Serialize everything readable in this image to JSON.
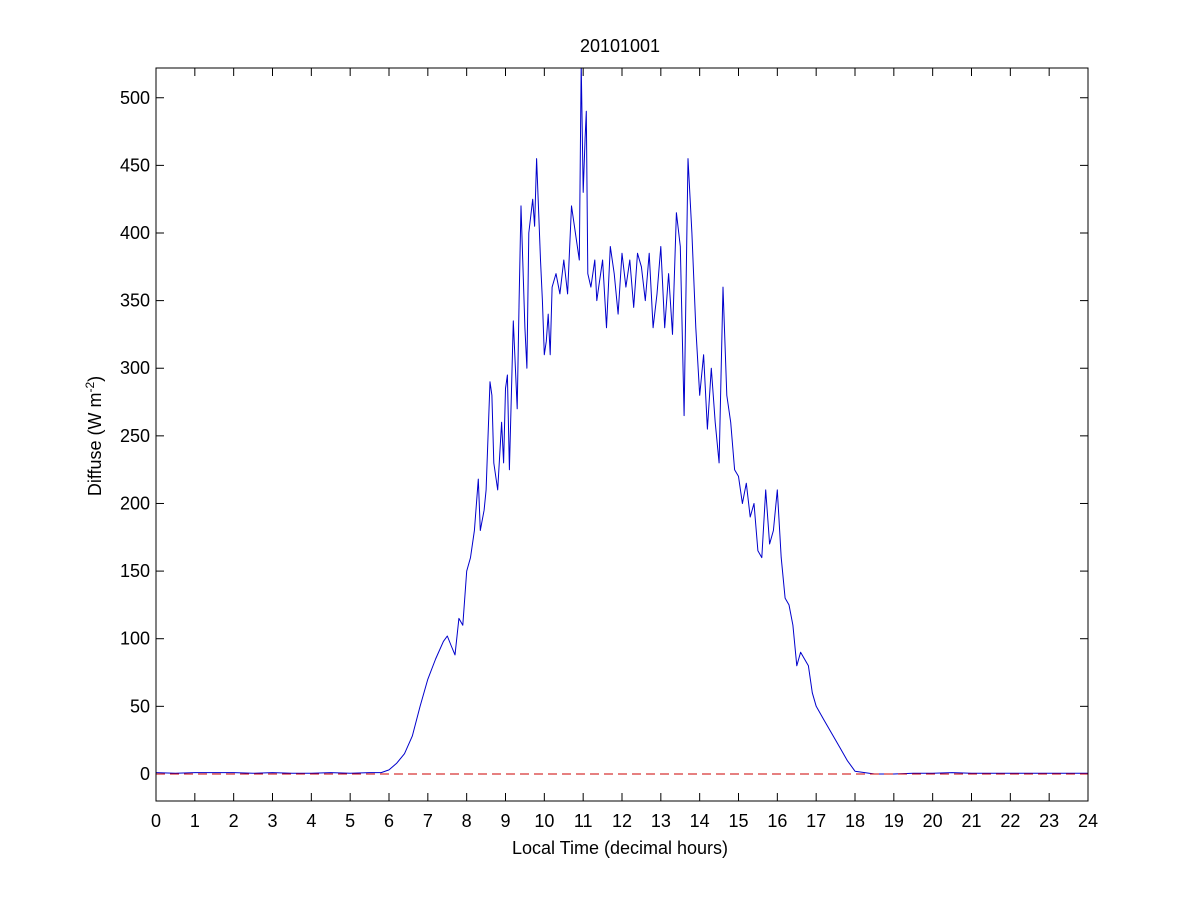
{
  "chart_data": {
    "type": "line",
    "title": "20101001",
    "xlabel": "Local Time (decimal hours)",
    "ylabel_main": "Diffuse (W m",
    "ylabel_sup": "-2",
    "ylabel_tail": ")",
    "xlim": [
      0,
      24
    ],
    "ylim": [
      -20,
      522
    ],
    "xticks": [
      0,
      1,
      2,
      3,
      4,
      5,
      6,
      7,
      8,
      9,
      10,
      11,
      12,
      13,
      14,
      15,
      16,
      17,
      18,
      19,
      20,
      21,
      22,
      23,
      24
    ],
    "yticks": [
      0,
      50,
      100,
      150,
      200,
      250,
      300,
      350,
      400,
      450,
      500
    ],
    "grid": false,
    "colors": {
      "series": "#0000cc",
      "baseline": "#cc0000"
    },
    "series": [
      {
        "style": "solid",
        "x": [
          0,
          0.5,
          1,
          1.5,
          2,
          2.5,
          3,
          3.5,
          4,
          4.5,
          5,
          5.5,
          5.8,
          6.0,
          6.2,
          6.4,
          6.6,
          6.8,
          7.0,
          7.2,
          7.4,
          7.5,
          7.6,
          7.7,
          7.8,
          7.9,
          8.0,
          8.1,
          8.2,
          8.3,
          8.35,
          8.45,
          8.5,
          8.6,
          8.65,
          8.7,
          8.8,
          8.9,
          8.95,
          9.0,
          9.05,
          9.1,
          9.2,
          9.3,
          9.35,
          9.4,
          9.5,
          9.55,
          9.6,
          9.7,
          9.75,
          9.8,
          9.9,
          9.95,
          10.0,
          10.05,
          10.1,
          10.15,
          10.2,
          10.3,
          10.4,
          10.5,
          10.6,
          10.7,
          10.8,
          10.9,
          10.95,
          11.0,
          11.05,
          11.08,
          11.12,
          11.2,
          11.3,
          11.35,
          11.4,
          11.5,
          11.6,
          11.7,
          11.8,
          11.9,
          12.0,
          12.1,
          12.2,
          12.3,
          12.4,
          12.5,
          12.6,
          12.7,
          12.8,
          12.9,
          13.0,
          13.1,
          13.2,
          13.3,
          13.4,
          13.5,
          13.6,
          13.7,
          13.8,
          13.9,
          14.0,
          14.1,
          14.2,
          14.3,
          14.4,
          14.5,
          14.6,
          14.7,
          14.8,
          14.9,
          15.0,
          15.1,
          15.2,
          15.3,
          15.4,
          15.5,
          15.6,
          15.7,
          15.8,
          15.9,
          16.0,
          16.1,
          16.2,
          16.3,
          16.4,
          16.5,
          16.6,
          16.7,
          16.8,
          16.9,
          17.0,
          17.2,
          17.4,
          17.6,
          17.8,
          18.0,
          18.5,
          19,
          19.5,
          20,
          20.5,
          21,
          21.5,
          22,
          22.5,
          23,
          23.5,
          24
        ],
        "y": [
          1,
          0.5,
          1,
          1,
          1,
          0.5,
          1,
          0.5,
          0.5,
          1,
          0.5,
          1,
          1,
          3,
          8,
          15,
          28,
          50,
          70,
          85,
          98,
          102,
          95,
          88,
          115,
          110,
          150,
          160,
          180,
          218,
          180,
          195,
          210,
          290,
          280,
          230,
          210,
          260,
          230,
          285,
          295,
          225,
          335,
          270,
          350,
          420,
          330,
          300,
          400,
          425,
          405,
          455,
          380,
          350,
          310,
          320,
          340,
          310,
          360,
          370,
          355,
          380,
          355,
          420,
          400,
          380,
          525,
          430,
          470,
          490,
          370,
          360,
          380,
          350,
          360,
          380,
          330,
          390,
          370,
          340,
          385,
          360,
          380,
          345,
          385,
          375,
          350,
          385,
          330,
          355,
          390,
          330,
          370,
          325,
          415,
          390,
          265,
          455,
          400,
          330,
          280,
          310,
          255,
          300,
          260,
          230,
          360,
          280,
          260,
          225,
          220,
          200,
          215,
          190,
          200,
          165,
          160,
          210,
          170,
          180,
          210,
          160,
          130,
          125,
          110,
          80,
          90,
          85,
          80,
          60,
          50,
          40,
          30,
          20,
          10,
          2,
          0,
          0,
          0.5,
          0.5,
          1,
          0.5,
          0.5,
          0.5,
          0.5,
          0.5,
          0.5,
          0.5
        ]
      },
      {
        "style": "dashed",
        "x": [
          0,
          24
        ],
        "y": [
          0,
          0
        ]
      }
    ]
  }
}
